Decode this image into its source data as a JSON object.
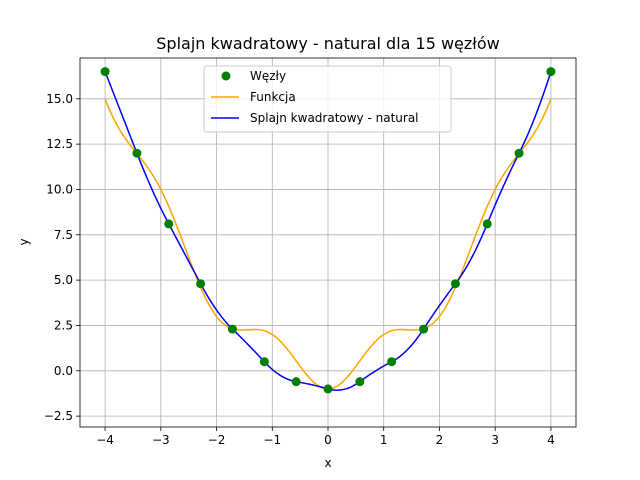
{
  "chart_data": {
    "type": "line",
    "title": "Splajn kwadratowy - natural dla 15 węzłów",
    "xlabel": "x",
    "ylabel": "y",
    "xlim": [
      -4.45,
      4.45
    ],
    "ylim": [
      -3.1,
      17.25
    ],
    "grid": true,
    "legend_position": "upper center",
    "x_ticks": [
      -4,
      -3,
      -2,
      -1,
      0,
      1,
      2,
      3,
      4
    ],
    "x_tick_labels": [
      "−4",
      "−3",
      "−2",
      "−1",
      "0",
      "1",
      "2",
      "3",
      "4"
    ],
    "y_ticks": [
      -2.5,
      0,
      2.5,
      5,
      7.5,
      10,
      12.5,
      15
    ],
    "y_tick_labels": [
      "−2.5",
      "0.0",
      "2.5",
      "5.0",
      "7.5",
      "10.0",
      "12.5",
      "15.0"
    ],
    "nodes": {
      "name": "Węzły",
      "color": "#008000",
      "x": [
        -4.0,
        -3.4286,
        -2.8571,
        -2.2857,
        -1.7143,
        -1.1429,
        -0.5714,
        0.0,
        0.5714,
        1.1429,
        1.7143,
        2.2857,
        2.8571,
        3.4286,
        4.0
      ],
      "y": [
        16.5,
        12.0,
        8.1,
        4.8,
        2.3,
        0.5,
        -0.6,
        -1.0,
        -0.6,
        0.5,
        2.3,
        4.8,
        8.1,
        12.0,
        16.5
      ]
    },
    "series": [
      {
        "name": "Funkcja",
        "color": "#ffa500",
        "function": "x^2 - cos(pi*x)",
        "x_range": [
          -4,
          4
        ]
      },
      {
        "name": "Splajn kwadratowy - natural",
        "color": "#0000ff",
        "interpolates": "Węzły",
        "boundary": "natural",
        "x_range": [
          -4,
          4
        ]
      }
    ]
  }
}
